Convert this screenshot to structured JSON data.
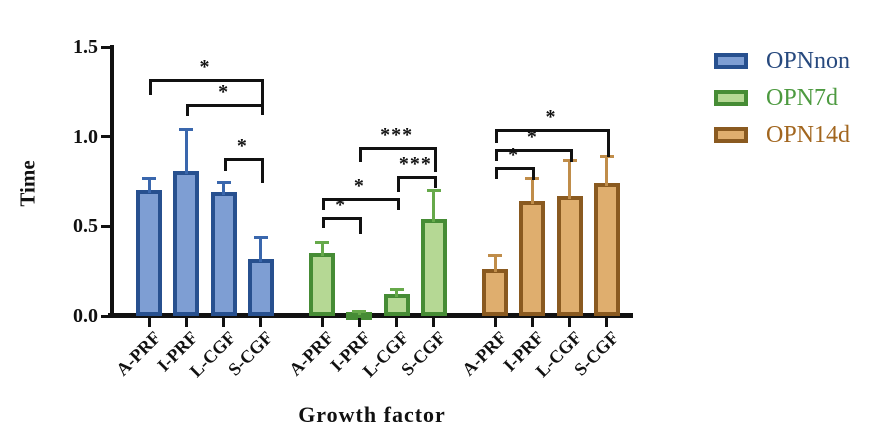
{
  "chart_data": {
    "type": "bar",
    "title": "",
    "xlabel": "Growth factor",
    "ylabel": "Time",
    "ylim": [
      0,
      1.5
    ],
    "yticks": [
      "0.0",
      "0.5",
      "1.0",
      "1.5"
    ],
    "ytick_values": [
      0,
      0.5,
      1.0,
      1.5
    ],
    "categories": [
      "A-PRF",
      "I-PRF",
      "L-CGF",
      "S-CGF"
    ],
    "grid": false,
    "legend_position": "right-top",
    "error_bars": "upper-sd",
    "series": [
      {
        "name": "OPNnon",
        "fill": "#7e9ed3",
        "border": "#27508f",
        "error_color": "#3a67ad",
        "label_color": "#27497e",
        "values": [
          0.7,
          0.81,
          0.69,
          0.32
        ],
        "errors_plus": [
          0.07,
          0.23,
          0.06,
          0.12
        ]
      },
      {
        "name": "OPN7d",
        "fill": "#b5d894",
        "border": "#468c35",
        "error_color": "#66a94a",
        "label_color": "#4d9a40",
        "values": [
          0.35,
          0.02,
          0.12,
          0.54
        ],
        "errors_plus": [
          0.06,
          0.01,
          0.03,
          0.16
        ]
      },
      {
        "name": "OPN14d",
        "fill": "#dfae6e",
        "border": "#8a5a20",
        "error_color": "#c08d4a",
        "label_color": "#a2661f",
        "values": [
          0.26,
          0.64,
          0.67,
          0.74
        ],
        "errors_plus": [
          0.08,
          0.13,
          0.2,
          0.15
        ]
      }
    ],
    "significance_brackets": [
      {
        "series": 0,
        "from": 0,
        "to": 3,
        "label": "*",
        "y": 1.32,
        "left_drop": 16,
        "right_drop": 36
      },
      {
        "series": 0,
        "from": 1,
        "to": 3,
        "label": "*",
        "y": 1.18,
        "left_drop": 12,
        "right_drop": 10
      },
      {
        "series": 0,
        "from": 2,
        "to": 3,
        "label": "*",
        "y": 0.88,
        "left_drop": 13,
        "right_drop": 25
      },
      {
        "series": 1,
        "from": 1,
        "to": 3,
        "label": "***",
        "y": 0.94,
        "left_drop": 15,
        "right_drop": 25
      },
      {
        "series": 1,
        "from": 2,
        "to": 3,
        "label": "***",
        "y": 0.78,
        "left_drop": 16,
        "right_drop": 12
      },
      {
        "series": 1,
        "from": 0,
        "to": 2,
        "label": "*",
        "y": 0.66,
        "left_drop": 12,
        "right_drop": 12
      },
      {
        "series": 1,
        "from": 0,
        "to": 1,
        "label": "*",
        "y": 0.55,
        "left_drop": 11,
        "right_drop": 17
      },
      {
        "series": 2,
        "from": 0,
        "to": 3,
        "label": "*",
        "y": 1.04,
        "left_drop": 14,
        "right_drop": 28
      },
      {
        "series": 2,
        "from": 0,
        "to": 2,
        "label": "*",
        "y": 0.93,
        "left_drop": 12,
        "right_drop": 13
      },
      {
        "series": 2,
        "from": 0,
        "to": 1,
        "label": "*",
        "y": 0.83,
        "left_drop": 12,
        "right_drop": 13
      }
    ]
  }
}
